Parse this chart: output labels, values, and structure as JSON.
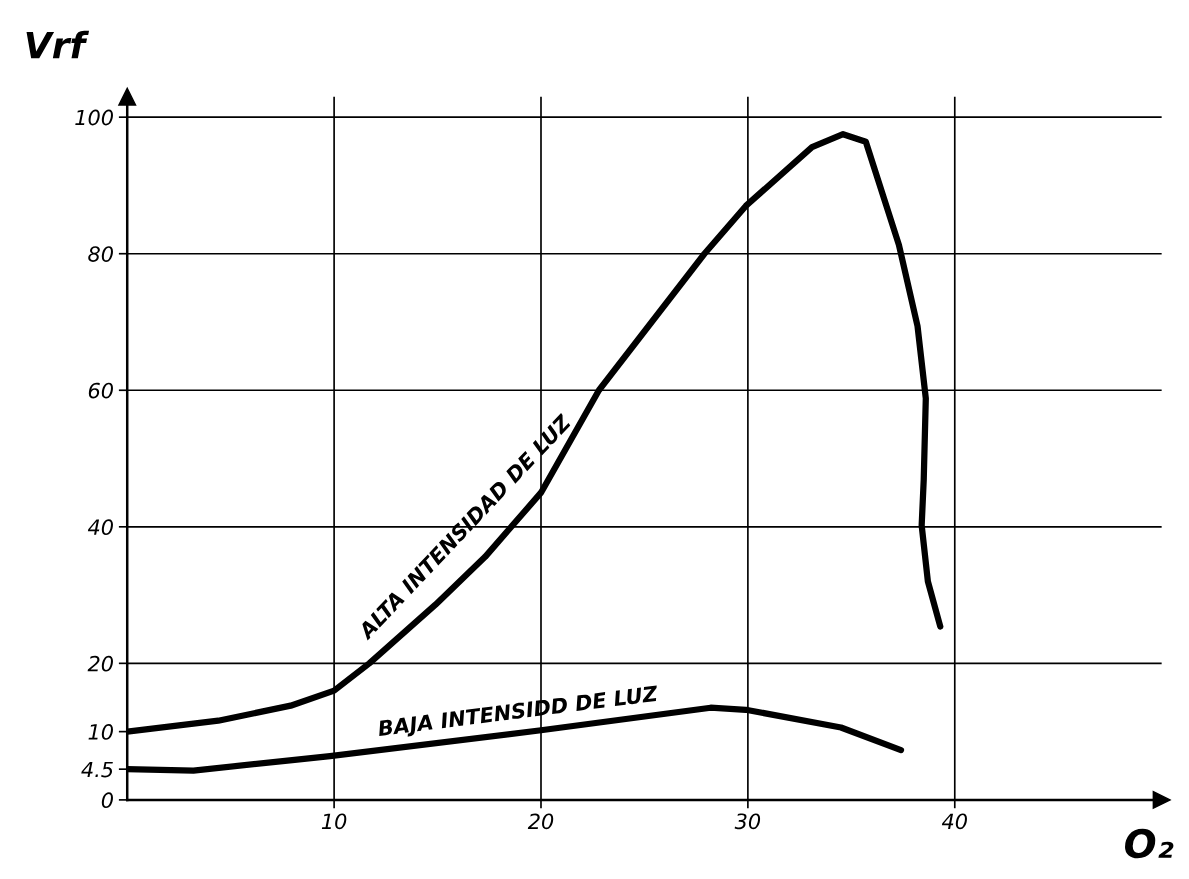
{
  "chart_data": {
    "type": "line",
    "xlabel": "O₂",
    "ylabel": "Vrf",
    "xlim": [
      0,
      50
    ],
    "ylim": [
      0,
      103
    ],
    "xticks": [
      10,
      20,
      30,
      40
    ],
    "yticks": [
      0,
      4.5,
      10,
      20,
      40,
      60,
      80,
      100
    ],
    "grid": false,
    "legend": false,
    "marker": "none",
    "line_style": "solid",
    "ref_lines": [
      {
        "axis": "x",
        "value": 10
      },
      {
        "axis": "x",
        "value": 20
      },
      {
        "axis": "x",
        "value": 30
      },
      {
        "axis": "x",
        "value": 40
      },
      {
        "axis": "y",
        "value": 20
      },
      {
        "axis": "y",
        "value": 40
      },
      {
        "axis": "y",
        "value": 60
      },
      {
        "axis": "y",
        "value": 80
      },
      {
        "axis": "y",
        "value": 100
      }
    ],
    "series": [
      {
        "name": "ALTA INTENSIDAD DE LUZ",
        "color": "#000000",
        "x": [
          0,
          4.4,
          7.9,
          10,
          11.7,
          14.9,
          17.3,
          20,
          22.8,
          27.9,
          29.9,
          33.1,
          34.6,
          35.7,
          37.3,
          38.2,
          38.6,
          38.5,
          38.4,
          38.7,
          39.3
        ],
        "values": [
          10,
          11.6,
          13.8,
          16,
          20,
          28.6,
          35.6,
          45,
          60,
          80,
          87,
          95.6,
          97.5,
          96.4,
          81.3,
          69.4,
          58.8,
          46.9,
          40.2,
          32,
          25.4
        ]
      },
      {
        "name": "BAJA INTENSIDD DE LUZ",
        "color": "#000000",
        "x": [
          0,
          3.2,
          9.8,
          20,
          28.2,
          29.9,
          34.5,
          37.4
        ],
        "values": [
          4.5,
          4.3,
          6.4,
          10.2,
          13.5,
          13.2,
          10.6,
          7.3
        ]
      }
    ]
  }
}
